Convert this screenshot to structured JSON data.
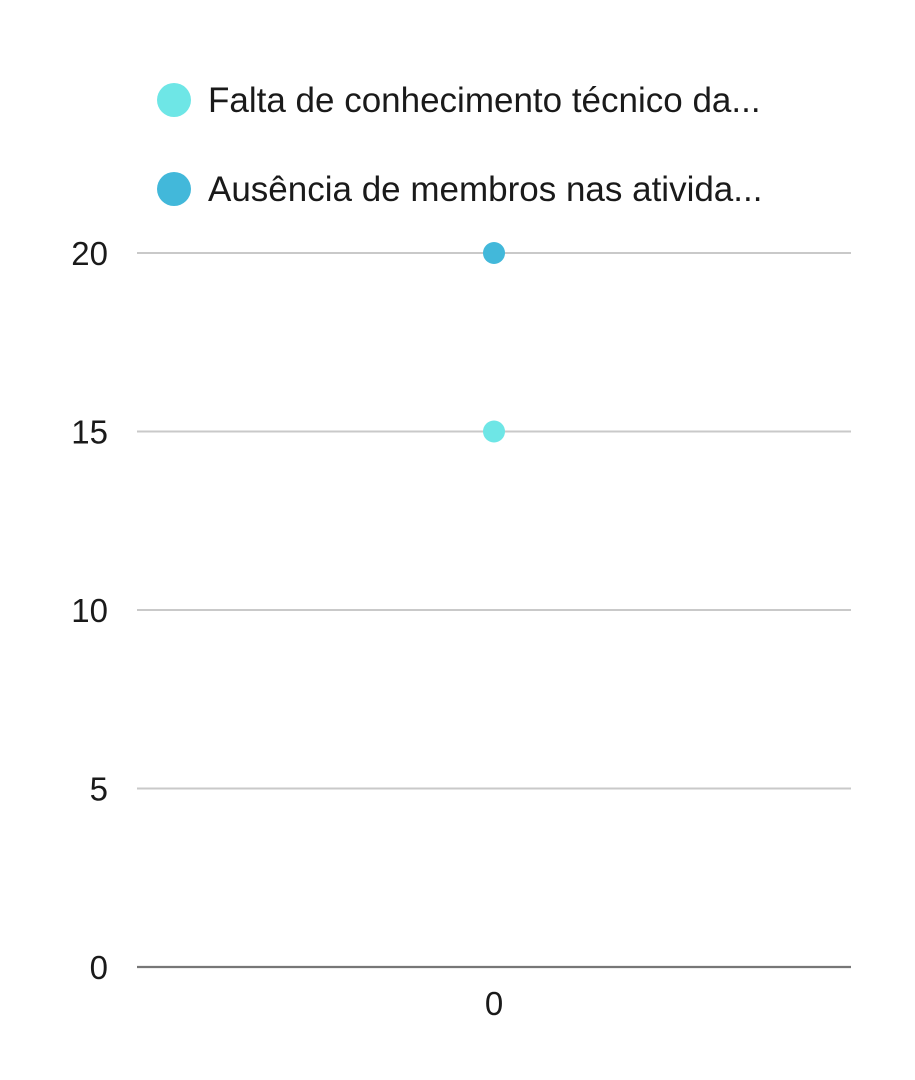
{
  "chart_data": {
    "type": "scatter",
    "categories": [
      "0"
    ],
    "ylim": [
      0,
      20
    ],
    "yticks": [
      0,
      5,
      10,
      15,
      20
    ],
    "grid": true,
    "legend_position": "top",
    "series": [
      {
        "name": "Falta de conhecimento técnico da...",
        "color": "#6ee6e6",
        "values": [
          15
        ]
      },
      {
        "name": "Ausência de membros nas ativida...",
        "color": "#42b8da",
        "values": [
          20
        ]
      }
    ]
  }
}
